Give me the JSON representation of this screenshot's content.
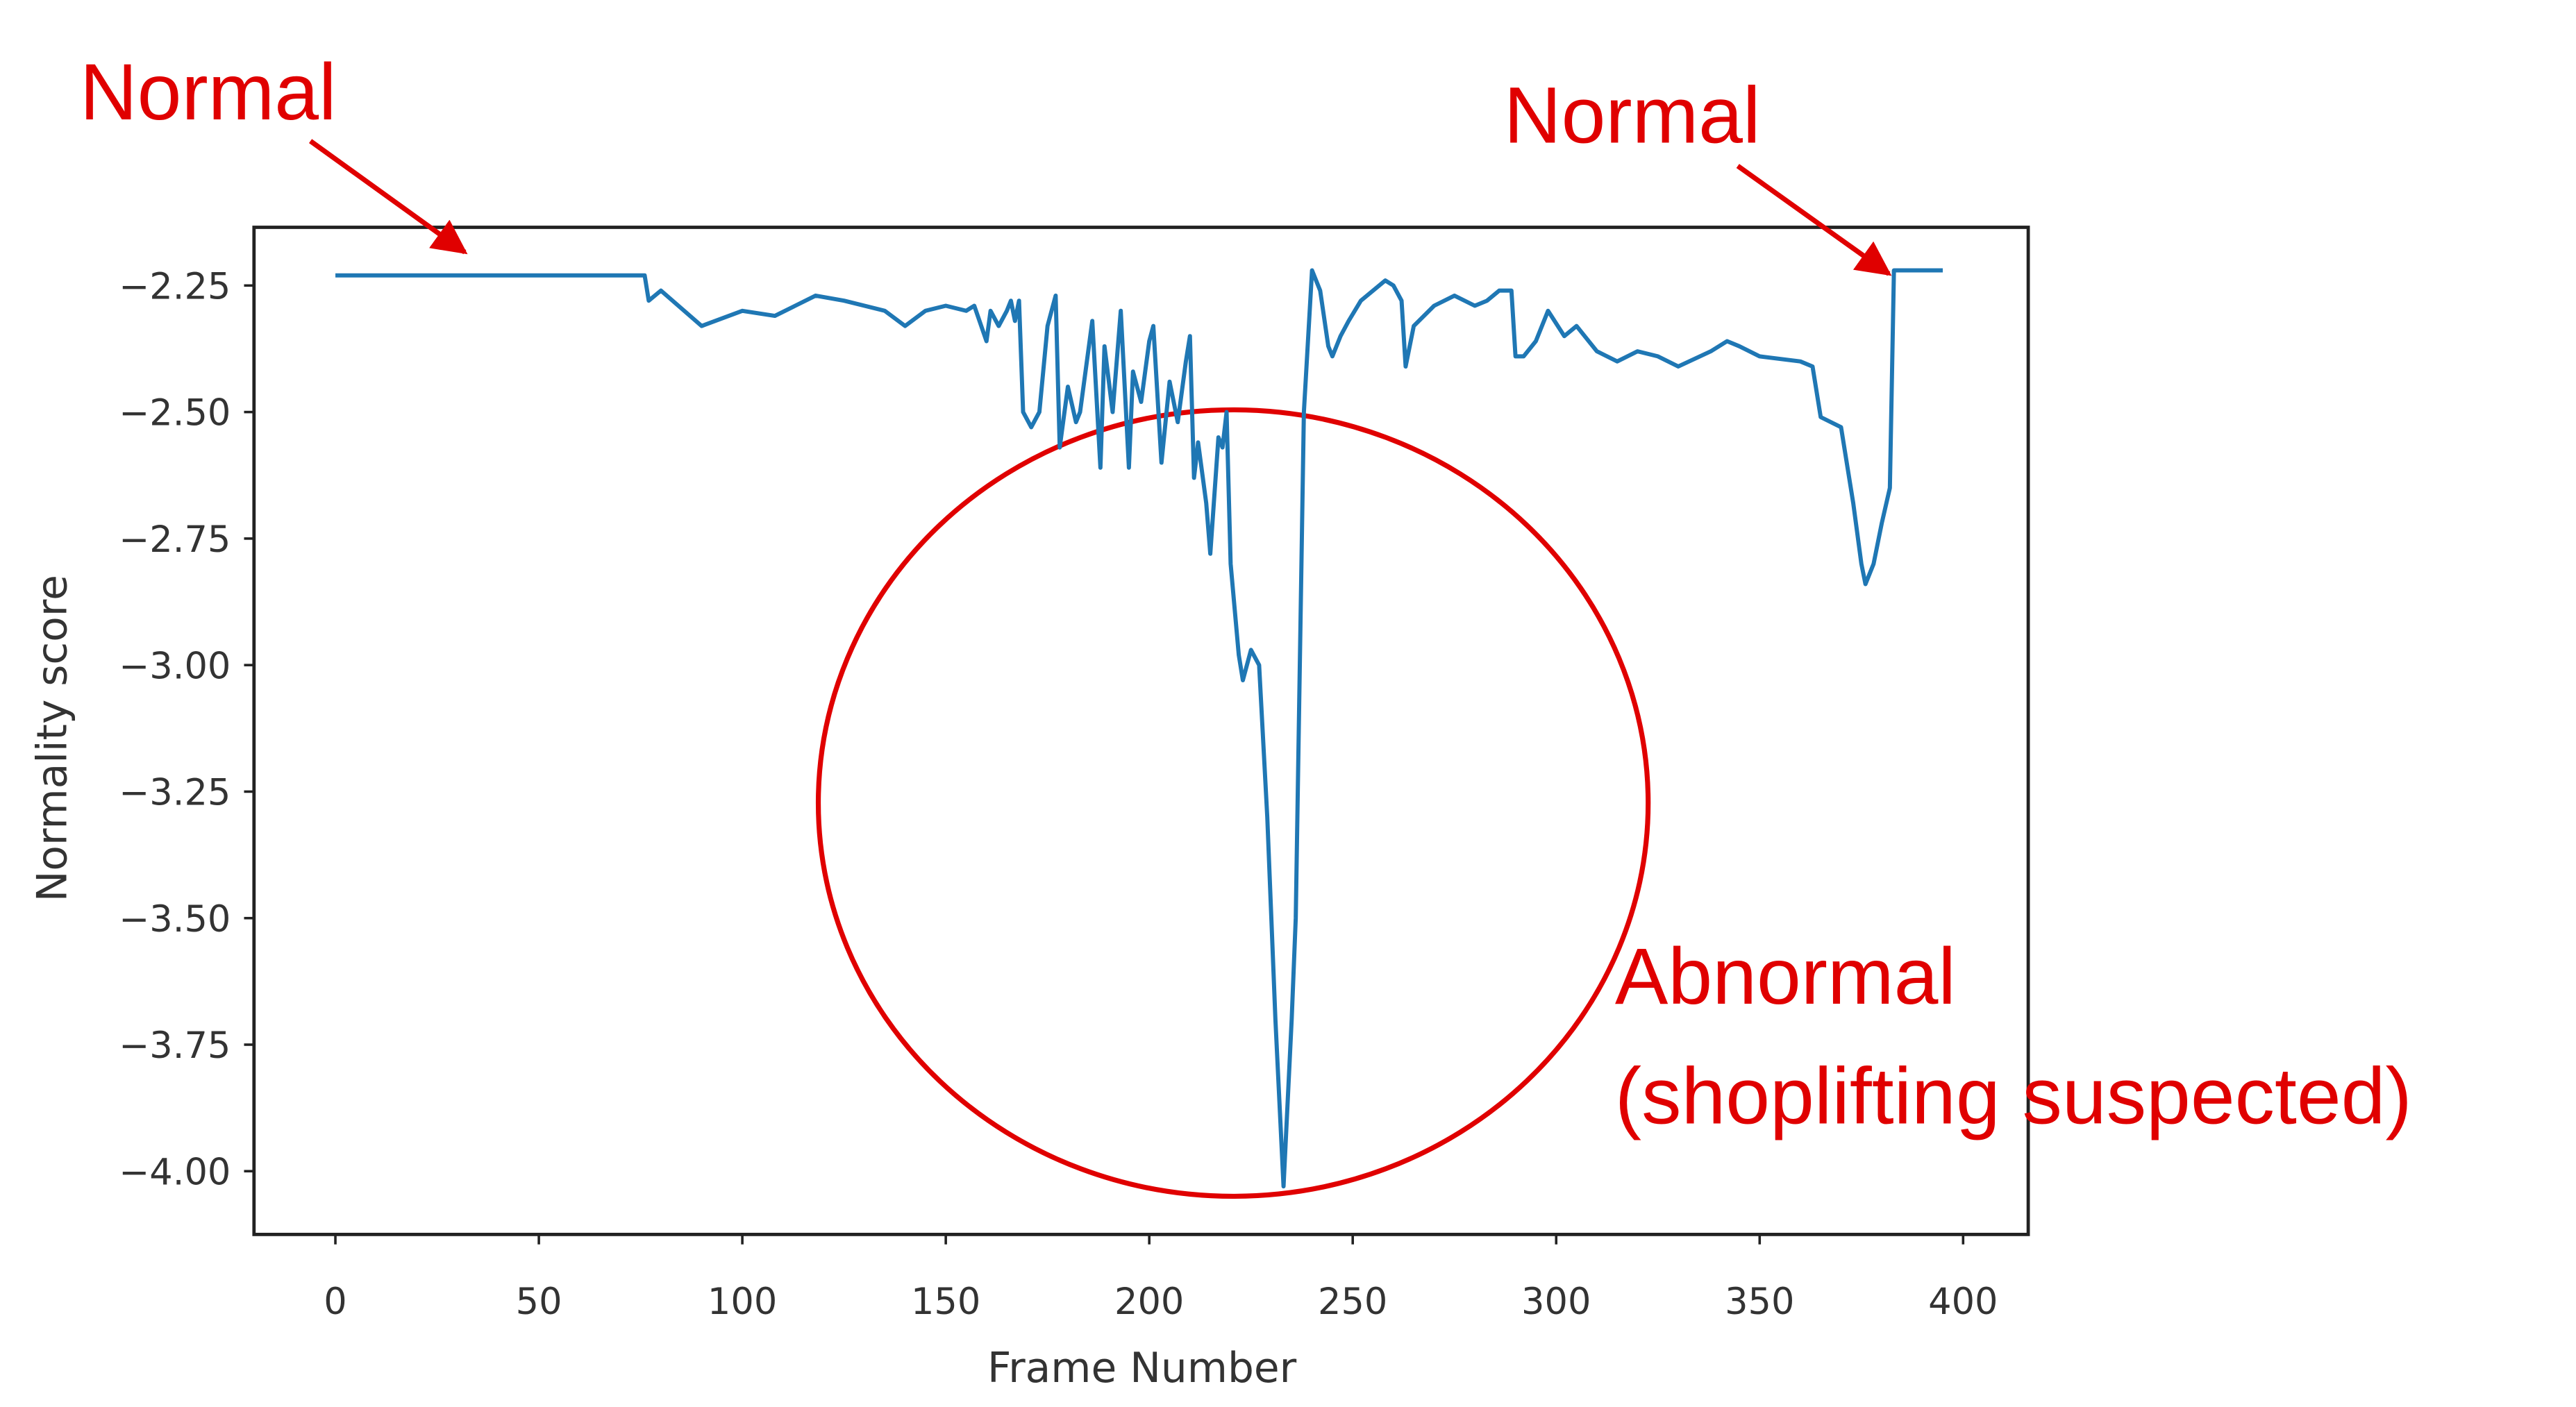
{
  "chart_data": {
    "type": "line",
    "xlabel": "Frame Number",
    "ylabel": "Normality score",
    "color": "#1f77b4",
    "x": [
      0,
      76,
      77,
      80,
      90,
      100,
      108,
      113,
      118,
      125,
      135,
      140,
      145,
      150,
      155,
      157,
      160,
      161,
      163,
      165,
      166,
      167,
      168,
      169,
      171,
      173,
      175,
      177,
      178,
      180,
      182,
      183,
      185,
      186,
      188,
      189,
      191,
      193,
      195,
      196,
      198,
      200,
      201,
      203,
      205,
      207,
      209,
      210,
      211,
      212,
      214,
      215,
      217,
      218,
      219,
      220,
      222,
      223,
      225,
      227,
      229,
      231,
      233,
      235,
      236,
      238,
      240,
      242,
      244,
      245,
      247,
      249,
      252,
      258,
      260,
      262,
      263,
      265,
      270,
      275,
      280,
      283,
      286,
      289,
      290,
      292,
      295,
      298,
      302,
      305,
      310,
      315,
      320,
      325,
      330,
      338,
      342,
      345,
      350,
      360,
      363,
      365,
      370,
      373,
      375,
      376,
      378,
      380,
      382,
      383,
      395
    ],
    "values": [
      -2.23,
      -2.23,
      -2.28,
      -2.26,
      -2.33,
      -2.3,
      -2.31,
      -2.29,
      -2.27,
      -2.28,
      -2.3,
      -2.33,
      -2.3,
      -2.29,
      -2.3,
      -2.29,
      -2.36,
      -2.3,
      -2.33,
      -2.3,
      -2.28,
      -2.32,
      -2.28,
      -2.5,
      -2.53,
      -2.5,
      -2.33,
      -2.27,
      -2.57,
      -2.45,
      -2.52,
      -2.5,
      -2.38,
      -2.32,
      -2.61,
      -2.37,
      -2.5,
      -2.3,
      -2.61,
      -2.42,
      -2.48,
      -2.36,
      -2.33,
      -2.6,
      -2.44,
      -2.52,
      -2.4,
      -2.35,
      -2.63,
      -2.56,
      -2.68,
      -2.78,
      -2.55,
      -2.57,
      -2.5,
      -2.8,
      -2.98,
      -3.03,
      -2.97,
      -3.0,
      -3.3,
      -3.7,
      -4.03,
      -3.7,
      -3.5,
      -2.5,
      -2.22,
      -2.26,
      -2.37,
      -2.39,
      -2.35,
      -2.32,
      -2.28,
      -2.24,
      -2.25,
      -2.28,
      -2.41,
      -2.33,
      -2.29,
      -2.27,
      -2.29,
      -2.28,
      -2.26,
      -2.26,
      -2.39,
      -2.39,
      -2.36,
      -2.3,
      -2.35,
      -2.33,
      -2.38,
      -2.4,
      -2.38,
      -2.39,
      -2.41,
      -2.38,
      -2.36,
      -2.37,
      -2.39,
      -2.4,
      -2.41,
      -2.51,
      -2.53,
      -2.68,
      -2.8,
      -2.84,
      -2.8,
      -2.72,
      -2.65,
      -2.22,
      -2.22
    ],
    "xlim": [
      -20,
      416
    ],
    "ylim": [
      -4.125,
      -2.135
    ],
    "xticks": [
      0,
      50,
      100,
      150,
      200,
      250,
      300,
      350,
      400
    ],
    "yticks": [
      {
        "value": -2.25,
        "label": "−2.25"
      },
      {
        "value": -2.5,
        "label": "−2.50"
      },
      {
        "value": -2.75,
        "label": "−2.75"
      },
      {
        "value": -3.0,
        "label": "−3.00"
      },
      {
        "value": -3.25,
        "label": "−3.25"
      },
      {
        "value": -3.5,
        "label": "−3.50"
      },
      {
        "value": -3.75,
        "label": "−3.75"
      },
      {
        "value": -4.0,
        "label": "−4.00"
      }
    ],
    "grid": false,
    "annotations": [
      "Normal",
      "Normal",
      "Abnormal",
      "(shoplifting suspected)"
    ],
    "annotation_color": "#e00000"
  }
}
